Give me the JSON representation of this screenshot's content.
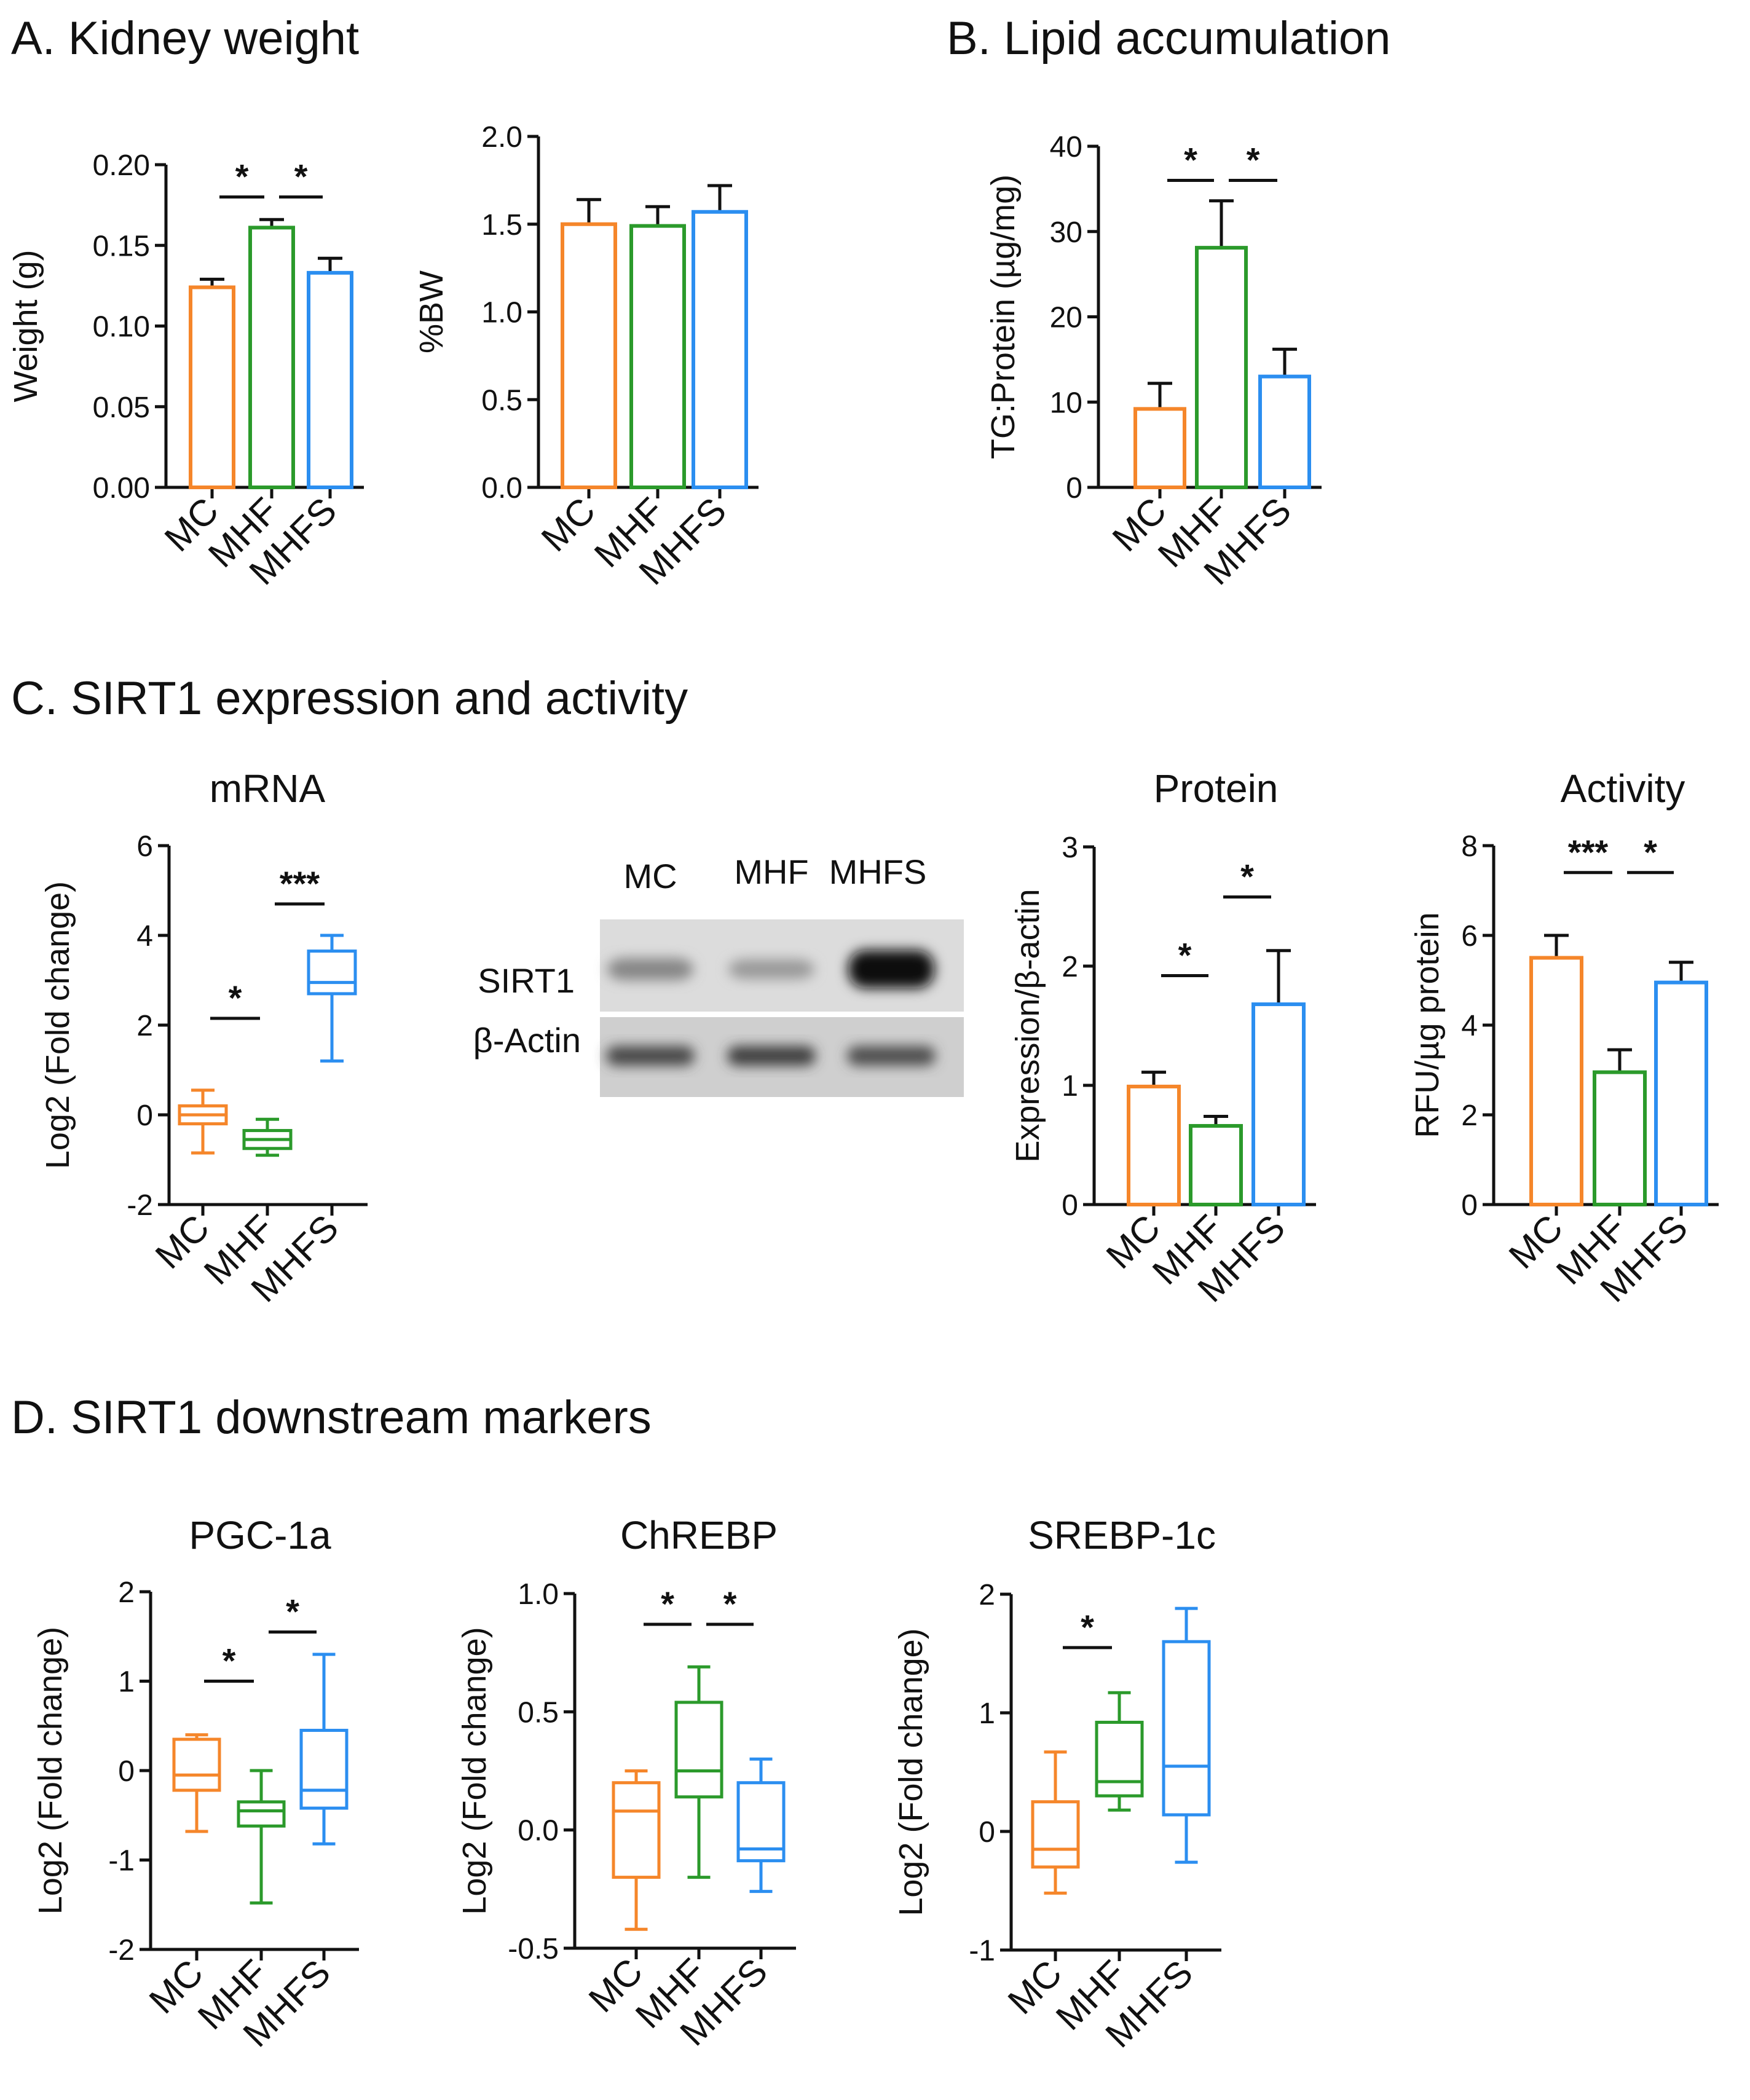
{
  "colors": {
    "MC": "#f5862a",
    "MHF": "#2b9a2b",
    "MHFS": "#2b8ef0",
    "axis": "#111111"
  },
  "sections": {
    "a": "A. Kidney weight",
    "b": "B. Lipid accumulation",
    "c": "C. SIRT1 expression and activity",
    "d": "D. SIRT1 downstream markers"
  },
  "blot": {
    "lanes": [
      "MC",
      "MHF",
      "MHFS"
    ],
    "rows": [
      "SIRT1",
      "β-Actin"
    ],
    "sirt1_intensity": [
      0.35,
      0.25,
      1.0
    ],
    "actin_intensity": [
      0.75,
      0.8,
      0.7
    ]
  },
  "chart_data": [
    {
      "id": "weight",
      "type": "bar",
      "title": "",
      "ylabel": "Weight (g)",
      "categories": [
        "MC",
        "MHF",
        "MHFS"
      ],
      "values": [
        0.124,
        0.161,
        0.133
      ],
      "errors": [
        0.005,
        0.005,
        0.009
      ],
      "ylim": [
        0,
        0.2
      ],
      "yticks": [
        "0.00",
        "0.05",
        "0.10",
        "0.15",
        "0.20"
      ],
      "sig": [
        {
          "from": 0,
          "to": 1,
          "label": "*",
          "y": 0.18
        },
        {
          "from": 1,
          "to": 2,
          "label": "*",
          "y": 0.18
        }
      ]
    },
    {
      "id": "bw",
      "type": "bar",
      "title": "",
      "ylabel": "%BW",
      "categories": [
        "MC",
        "MHF",
        "MHFS"
      ],
      "values": [
        1.5,
        1.49,
        1.57
      ],
      "errors": [
        0.14,
        0.11,
        0.15
      ],
      "ylim": [
        0,
        2.0
      ],
      "yticks": [
        "0.0",
        "0.5",
        "1.0",
        "1.5",
        "2.0"
      ],
      "sig": []
    },
    {
      "id": "tg",
      "type": "bar",
      "title": "",
      "ylabel": "TG:Protein (µg/mg)",
      "categories": [
        "MC",
        "MHF",
        "MHFS"
      ],
      "values": [
        9.2,
        28.1,
        13.0
      ],
      "errors": [
        3.0,
        5.5,
        3.2
      ],
      "ylim": [
        0,
        40
      ],
      "yticks": [
        "0",
        "10",
        "20",
        "30",
        "40"
      ],
      "sig": [
        {
          "from": 0,
          "to": 1,
          "label": "*",
          "y": 36
        },
        {
          "from": 1,
          "to": 2,
          "label": "*",
          "y": 36
        }
      ]
    },
    {
      "id": "mrna",
      "type": "box",
      "title": "mRNA",
      "ylabel": "Log2 (Fold change)",
      "categories": [
        "MC",
        "MHF",
        "MHFS"
      ],
      "boxes": [
        {
          "min": -0.85,
          "q1": -0.2,
          "median": 0.0,
          "q3": 0.2,
          "max": 0.55
        },
        {
          "min": -0.9,
          "q1": -0.75,
          "median": -0.55,
          "q3": -0.35,
          "max": -0.1
        },
        {
          "min": 1.2,
          "q1": 2.7,
          "median": 2.95,
          "q3": 3.65,
          "max": 4.0
        }
      ],
      "ylim": [
        -2,
        6
      ],
      "yticks": [
        "-2",
        "0",
        "2",
        "4",
        "6"
      ],
      "sig": [
        {
          "from": 0,
          "to": 1,
          "label": "*",
          "y": 2.15
        },
        {
          "from": 1,
          "to": 2,
          "label": "***",
          "y": 4.7
        }
      ]
    },
    {
      "id": "protein",
      "type": "bar",
      "title": "Protein",
      "ylabel": "Expression/β-actin",
      "categories": [
        "MC",
        "MHF",
        "MHFS"
      ],
      "values": [
        0.99,
        0.66,
        1.68
      ],
      "errors": [
        0.12,
        0.08,
        0.45
      ],
      "ylim": [
        0,
        3
      ],
      "yticks": [
        "0",
        "1",
        "2",
        "3"
      ],
      "sig": [
        {
          "from": 0,
          "to": 1,
          "label": "*",
          "y": 1.92
        },
        {
          "from": 1,
          "to": 2,
          "label": "*",
          "y": 2.58
        }
      ]
    },
    {
      "id": "activity",
      "type": "bar",
      "title": "Activity",
      "ylabel": "RFU/µg protein",
      "categories": [
        "MC",
        "MHF",
        "MHFS"
      ],
      "values": [
        5.5,
        2.95,
        4.95
      ],
      "errors": [
        0.5,
        0.5,
        0.45
      ],
      "ylim": [
        0,
        8
      ],
      "yticks": [
        "0",
        "2",
        "4",
        "6",
        "8"
      ],
      "sig": [
        {
          "from": 0,
          "to": 1,
          "label": "***",
          "y": 7.4
        },
        {
          "from": 1,
          "to": 2,
          "label": "*",
          "y": 7.4
        }
      ]
    },
    {
      "id": "pgc",
      "type": "box",
      "title": "PGC-1a",
      "ylabel": "Log2 (Fold change)",
      "categories": [
        "MC",
        "MHF",
        "MHFS"
      ],
      "boxes": [
        {
          "min": -0.68,
          "q1": -0.22,
          "median": -0.05,
          "q3": 0.35,
          "max": 0.4
        },
        {
          "min": -1.48,
          "q1": -0.62,
          "median": -0.45,
          "q3": -0.35,
          "max": 0.0
        },
        {
          "min": -0.82,
          "q1": -0.42,
          "median": -0.22,
          "q3": 0.45,
          "max": 1.3
        }
      ],
      "ylim": [
        -2,
        2
      ],
      "yticks": [
        "-2",
        "-1",
        "0",
        "1",
        "2"
      ],
      "sig": [
        {
          "from": 0,
          "to": 1,
          "label": "*",
          "y": 1.0
        },
        {
          "from": 1,
          "to": 2,
          "label": "*",
          "y": 1.55
        }
      ]
    },
    {
      "id": "chrebp",
      "type": "box",
      "title": "ChREBP",
      "ylabel": "Log2 (Fold change)",
      "categories": [
        "MC",
        "MHF",
        "MHFS"
      ],
      "boxes": [
        {
          "min": -0.42,
          "q1": -0.2,
          "median": 0.08,
          "q3": 0.2,
          "max": 0.25
        },
        {
          "min": -0.2,
          "q1": 0.14,
          "median": 0.25,
          "q3": 0.54,
          "max": 0.69
        },
        {
          "min": -0.26,
          "q1": -0.13,
          "median": -0.08,
          "q3": 0.2,
          "max": 0.3
        }
      ],
      "ylim": [
        -0.5,
        1.0
      ],
      "yticks": [
        "-0.5",
        "0.0",
        "0.5",
        "1.0"
      ],
      "sig": [
        {
          "from": 0,
          "to": 1,
          "label": "*",
          "y": 0.87
        },
        {
          "from": 1,
          "to": 2,
          "label": "*",
          "y": 0.87
        }
      ]
    },
    {
      "id": "srebp",
      "type": "box",
      "title": "SREBP-1c",
      "ylabel": "Log2 (Fold change)",
      "categories": [
        "MC",
        "MHF",
        "MHFS"
      ],
      "boxes": [
        {
          "min": -0.52,
          "q1": -0.3,
          "median": -0.15,
          "q3": 0.25,
          "max": 0.67
        },
        {
          "min": 0.18,
          "q1": 0.3,
          "median": 0.42,
          "q3": 0.92,
          "max": 1.17
        },
        {
          "min": -0.26,
          "q1": 0.14,
          "median": 0.55,
          "q3": 1.6,
          "max": 1.88
        }
      ],
      "ylim": [
        -1,
        2
      ],
      "yticks": [
        "-1",
        "0",
        "1",
        "2"
      ],
      "sig": [
        {
          "from": 0,
          "to": 1,
          "label": "*",
          "y": 1.55
        }
      ]
    }
  ]
}
